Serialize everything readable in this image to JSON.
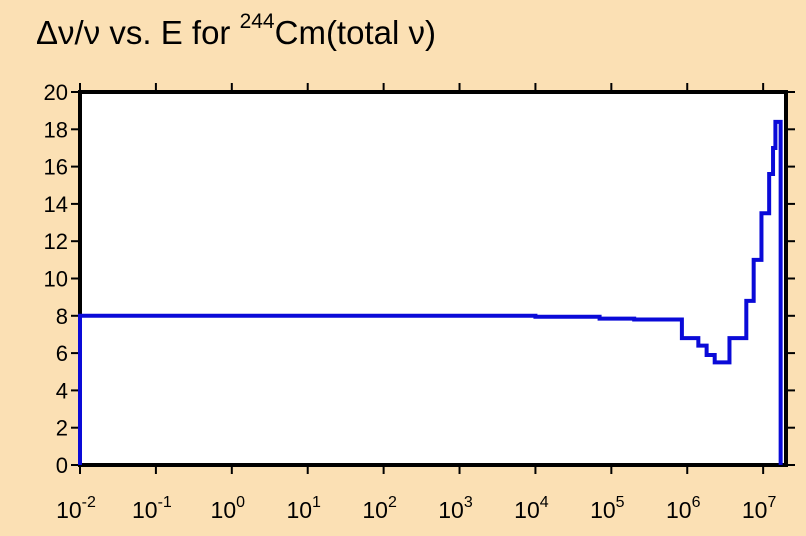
{
  "chart_data": {
    "type": "line",
    "title": {
      "prefix": "Δν/ν vs. E for ",
      "isotope_mass": "244",
      "suffix": "Cm(total ν)"
    },
    "xlabel": "",
    "ylabel": "",
    "x_scale": "log",
    "xlim": [
      0.01,
      20000000
    ],
    "ylim": [
      0,
      20
    ],
    "x_ticks": [
      {
        "base": "10",
        "exp": "-2",
        "value": 0.01
      },
      {
        "base": "10",
        "exp": "-1",
        "value": 0.1
      },
      {
        "base": "10",
        "exp": "0",
        "value": 1
      },
      {
        "base": "10",
        "exp": "1",
        "value": 10
      },
      {
        "base": "10",
        "exp": "2",
        "value": 100
      },
      {
        "base": "10",
        "exp": "3",
        "value": 1000
      },
      {
        "base": "10",
        "exp": "4",
        "value": 10000
      },
      {
        "base": "10",
        "exp": "5",
        "value": 100000
      },
      {
        "base": "10",
        "exp": "6",
        "value": 1000000
      },
      {
        "base": "10",
        "exp": "7",
        "value": 10000000
      }
    ],
    "y_ticks": [
      "0",
      "2",
      "4",
      "6",
      "8",
      "10",
      "12",
      "14",
      "16",
      "18",
      "20"
    ],
    "grid": false,
    "line_color": "#0a0ad8",
    "series": [
      {
        "step": "post",
        "points": [
          [
            0.01,
            0
          ],
          [
            0.01,
            8.0
          ],
          [
            1000,
            8.0
          ],
          [
            10000,
            7.95
          ],
          [
            70000,
            7.85
          ],
          [
            200000,
            7.8
          ],
          [
            850000,
            6.8
          ],
          [
            1400000,
            6.4
          ],
          [
            1800000,
            5.9
          ],
          [
            2300000,
            5.5
          ],
          [
            3600000,
            6.8
          ],
          [
            6000000,
            8.8
          ],
          [
            7500000,
            11.0
          ],
          [
            9500000,
            13.5
          ],
          [
            12000000,
            15.6
          ],
          [
            13500000,
            17.0
          ],
          [
            14500000,
            18.4
          ],
          [
            17000000,
            18.4
          ],
          [
            17000000,
            0
          ]
        ]
      }
    ]
  }
}
